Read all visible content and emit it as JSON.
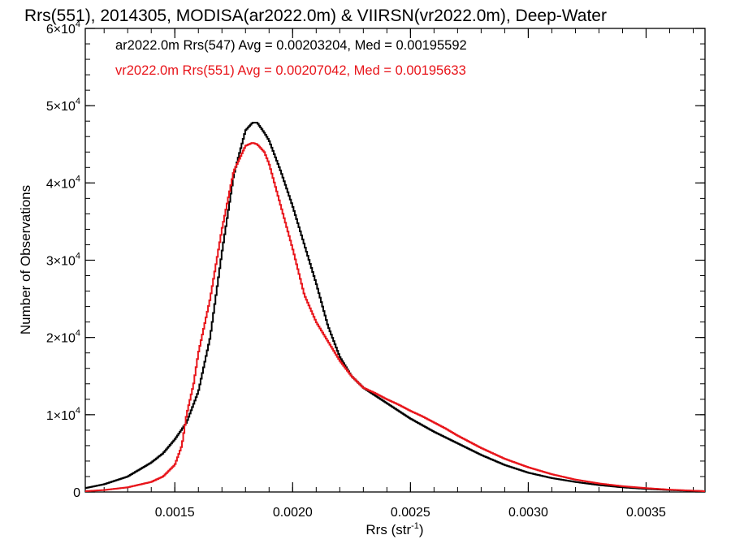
{
  "chart_data": {
    "type": "line",
    "title": "Rrs(551), 2014305, MODISA(ar2022.0m) & VIIRSN(vr2022.0m), Deep-Water",
    "xlabel": {
      "base": "Rrs (str",
      "sup": "-1",
      "end": ")"
    },
    "ylabel": "Number of Observations",
    "xlim": [
      0.00112,
      0.00375
    ],
    "ylim": [
      0,
      60000
    ],
    "x_ticks": [
      {
        "value": 0.0015,
        "label": "0.0015"
      },
      {
        "value": 0.002,
        "label": "0.0020"
      },
      {
        "value": 0.0025,
        "label": "0.0025"
      },
      {
        "value": 0.003,
        "label": "0.0030"
      },
      {
        "value": 0.0035,
        "label": "0.0035"
      }
    ],
    "y_ticks": [
      {
        "value": 0,
        "label": "0",
        "exp": ""
      },
      {
        "value": 10000,
        "label": "1×10",
        "exp": "4"
      },
      {
        "value": 20000,
        "label": "2×10",
        "exp": "4"
      },
      {
        "value": 30000,
        "label": "3×10",
        "exp": "4"
      },
      {
        "value": 40000,
        "label": "4×10",
        "exp": "4"
      },
      {
        "value": 50000,
        "label": "5×10",
        "exp": "4"
      },
      {
        "value": 60000,
        "label": "6×10",
        "exp": "4"
      }
    ],
    "legend_position": "top-left",
    "grid": false,
    "series": [
      {
        "name": "ar2022.0m Rrs(547) Avg = 0.00203204, Med = 0.00195592",
        "color": "#000000",
        "x": [
          0.00112,
          0.0012,
          0.0013,
          0.0014,
          0.00145,
          0.0015,
          0.00155,
          0.0016,
          0.00165,
          0.0017,
          0.00175,
          0.0018,
          0.00183,
          0.00185,
          0.00188,
          0.0019,
          0.00195,
          0.002,
          0.00205,
          0.0021,
          0.00215,
          0.0022,
          0.00225,
          0.0023,
          0.00235,
          0.0024,
          0.00245,
          0.0025,
          0.0026,
          0.0027,
          0.0028,
          0.0029,
          0.003,
          0.0031,
          0.0032,
          0.0033,
          0.0034,
          0.0035,
          0.0036,
          0.00375
        ],
        "y": [
          500,
          1000,
          2000,
          3800,
          5000,
          6800,
          9000,
          13000,
          20000,
          31000,
          41000,
          46800,
          47800,
          47800,
          46500,
          45500,
          41500,
          37000,
          32000,
          27000,
          21500,
          17500,
          15000,
          13500,
          12500,
          11500,
          10500,
          9500,
          7800,
          6300,
          4800,
          3500,
          2500,
          1800,
          1300,
          900,
          600,
          400,
          250,
          100
        ]
      },
      {
        "name": "vr2022.0m Rrs(551) Avg = 0.00207042, Med = 0.00195633",
        "color": "#e8141a",
        "x": [
          0.00112,
          0.0012,
          0.0013,
          0.0014,
          0.00145,
          0.0015,
          0.00153,
          0.00155,
          0.00158,
          0.0016,
          0.00165,
          0.0017,
          0.00175,
          0.0018,
          0.00183,
          0.00185,
          0.00188,
          0.0019,
          0.00195,
          0.002,
          0.00205,
          0.0021,
          0.00215,
          0.0022,
          0.00225,
          0.0023,
          0.00235,
          0.0024,
          0.00245,
          0.0025,
          0.00255,
          0.0026,
          0.00265,
          0.0027,
          0.00275,
          0.0028,
          0.0029,
          0.003,
          0.0031,
          0.0032,
          0.0033,
          0.0034,
          0.0035,
          0.0036,
          0.00375
        ],
        "y": [
          100,
          250,
          600,
          1300,
          2000,
          3500,
          6000,
          10000,
          14000,
          18000,
          25000,
          34000,
          41500,
          44800,
          45200,
          45000,
          44000,
          42500,
          37000,
          31500,
          25500,
          22000,
          19500,
          17000,
          15000,
          13500,
          12800,
          12000,
          11300,
          10500,
          9800,
          9000,
          8200,
          7300,
          6500,
          5700,
          4300,
          3200,
          2300,
          1600,
          1100,
          750,
          500,
          300,
          100
        ]
      }
    ]
  }
}
